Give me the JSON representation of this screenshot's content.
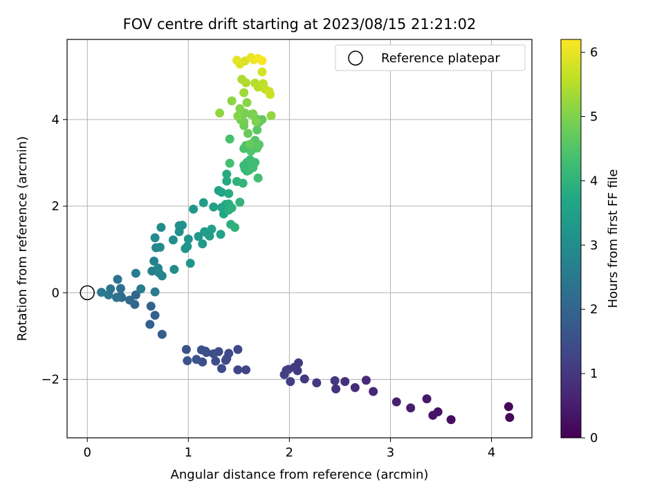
{
  "chart_data": {
    "type": "scatter",
    "title": "FOV centre drift starting at 2023/08/15 21:21:02",
    "xlabel": "Angular distance from reference (arcmin)",
    "ylabel": "Rotation from reference (arcmin)",
    "xlim": [
      -0.2,
      4.4
    ],
    "ylim": [
      -3.35,
      5.85
    ],
    "xticks": [
      0,
      1,
      2,
      3,
      4
    ],
    "yticks": [
      -2,
      0,
      2,
      4
    ],
    "grid": true,
    "legend": {
      "placement": "top-right",
      "entries": [
        "Reference platepar"
      ]
    },
    "reference_point": {
      "x": 0,
      "y": 0
    },
    "colorbar": {
      "label": "Hours from first FF file",
      "colormap": "viridis",
      "range": [
        0,
        6.2
      ],
      "ticks": [
        0,
        1,
        2,
        3,
        4,
        5,
        6
      ]
    },
    "series": [
      {
        "points": [
          [
            4.17,
            -2.63,
            0.1
          ],
          [
            4.18,
            -2.88,
            0.15
          ],
          [
            3.6,
            -2.93,
            0.2
          ],
          [
            3.47,
            -2.75,
            0.3
          ],
          [
            3.42,
            -2.83,
            0.35
          ],
          [
            3.36,
            -2.45,
            0.4
          ],
          [
            3.2,
            -2.66,
            0.5
          ],
          [
            3.06,
            -2.52,
            0.55
          ],
          [
            2.83,
            -2.28,
            0.7
          ],
          [
            2.76,
            -2.02,
            0.75
          ],
          [
            2.65,
            -2.19,
            0.8
          ],
          [
            2.55,
            -2.05,
            0.85
          ],
          [
            2.46,
            -2.22,
            0.9
          ],
          [
            2.45,
            -2.03,
            0.95
          ],
          [
            2.27,
            -2.08,
            1.0
          ],
          [
            2.15,
            -1.99,
            1.02
          ],
          [
            2.09,
            -1.62,
            1.04
          ],
          [
            2.08,
            -1.8,
            1.06
          ],
          [
            2.05,
            -1.72,
            1.08
          ],
          [
            2.01,
            -2.05,
            1.1
          ],
          [
            1.99,
            -1.77,
            1.12
          ],
          [
            1.97,
            -1.79,
            1.14
          ],
          [
            1.95,
            -1.89,
            1.16
          ],
          [
            1.57,
            -1.78,
            1.25
          ],
          [
            1.49,
            -1.78,
            1.28
          ],
          [
            1.49,
            -1.31,
            1.3
          ],
          [
            1.4,
            -1.4,
            1.33
          ],
          [
            1.38,
            -1.52,
            1.36
          ],
          [
            1.37,
            -1.56,
            1.38
          ],
          [
            1.33,
            -1.75,
            1.4
          ],
          [
            1.3,
            -1.36,
            1.42
          ],
          [
            1.27,
            -1.58,
            1.44
          ],
          [
            1.25,
            -1.41,
            1.46
          ],
          [
            1.18,
            -1.38,
            1.48
          ],
          [
            1.14,
            -1.6,
            1.5
          ],
          [
            1.17,
            -1.35,
            1.52
          ],
          [
            1.13,
            -1.32,
            1.54
          ],
          [
            1.08,
            -1.54,
            1.56
          ],
          [
            0.98,
            -1.31,
            1.58
          ],
          [
            0.99,
            -1.57,
            1.6
          ],
          [
            0.74,
            -0.96,
            1.8
          ],
          [
            0.67,
            -0.52,
            1.85
          ],
          [
            0.62,
            -0.73,
            1.9
          ],
          [
            0.63,
            -0.31,
            1.95
          ],
          [
            0.48,
            -0.05,
            2.0
          ],
          [
            0.47,
            -0.27,
            2.05
          ],
          [
            0.42,
            -0.17,
            2.1
          ],
          [
            0.34,
            -0.11,
            2.15
          ],
          [
            0.33,
            -0.08,
            2.2
          ],
          [
            0.33,
            0.1,
            2.25
          ],
          [
            0.29,
            -0.11,
            2.3
          ],
          [
            0.3,
            0.31,
            2.35
          ],
          [
            0.23,
            0.09,
            2.4
          ],
          [
            0.21,
            -0.05,
            2.45
          ],
          [
            0.14,
            0.01,
            2.5
          ],
          [
            0.53,
            0.09,
            2.55
          ],
          [
            0.67,
            0.02,
            2.58
          ],
          [
            0.48,
            0.45,
            2.62
          ],
          [
            0.64,
            0.5,
            2.66
          ],
          [
            0.66,
            0.73,
            2.7
          ],
          [
            0.71,
            0.46,
            2.74
          ],
          [
            0.74,
            0.39,
            2.78
          ],
          [
            0.7,
            0.57,
            2.82
          ],
          [
            0.68,
            1.04,
            2.86
          ],
          [
            0.72,
            1.05,
            2.9
          ],
          [
            0.67,
            1.27,
            2.93
          ],
          [
            0.73,
            1.51,
            2.96
          ],
          [
            0.86,
            0.54,
            3.0
          ],
          [
            0.85,
            1.22,
            3.03
          ],
          [
            0.91,
            1.41,
            3.06
          ],
          [
            0.91,
            1.55,
            3.09
          ],
          [
            0.94,
            1.56,
            3.12
          ],
          [
            0.97,
            1.02,
            3.15
          ],
          [
            0.99,
            1.07,
            3.18
          ],
          [
            1.0,
            1.24,
            3.21
          ],
          [
            1.02,
            0.68,
            3.24
          ],
          [
            1.05,
            1.93,
            3.27
          ],
          [
            1.1,
            1.3,
            3.3
          ],
          [
            1.14,
            1.13,
            3.33
          ],
          [
            1.16,
            1.41,
            3.36
          ],
          [
            1.15,
            2.08,
            3.39
          ],
          [
            1.19,
            1.37,
            3.42
          ],
          [
            1.21,
            1.31,
            3.45
          ],
          [
            1.23,
            1.47,
            3.48
          ],
          [
            1.25,
            1.98,
            3.51
          ],
          [
            1.3,
            2.36,
            3.54
          ],
          [
            1.32,
            1.35,
            3.57
          ],
          [
            1.33,
            1.97,
            3.6
          ],
          [
            1.33,
            2.32,
            3.63
          ],
          [
            1.35,
            1.82,
            3.66
          ],
          [
            1.36,
            1.93,
            3.69
          ],
          [
            1.37,
            2.04,
            3.72
          ],
          [
            1.38,
            2.58,
            3.75
          ],
          [
            1.38,
            2.74,
            3.78
          ],
          [
            1.4,
            2.29,
            3.81
          ],
          [
            1.4,
            2.05,
            3.84
          ],
          [
            1.4,
            1.91,
            3.87
          ],
          [
            1.42,
            1.58,
            3.9
          ],
          [
            1.43,
            1.96,
            3.93
          ],
          [
            1.46,
            1.51,
            3.96
          ],
          [
            1.48,
            2.57,
            3.99
          ],
          [
            1.51,
            2.09,
            4.02
          ],
          [
            1.54,
            2.53,
            4.05
          ],
          [
            1.56,
            2.86,
            4.08
          ],
          [
            1.58,
            2.81,
            4.11
          ],
          [
            1.55,
            2.94,
            4.14
          ],
          [
            1.58,
            3.01,
            4.17
          ],
          [
            1.6,
            2.83,
            4.2
          ],
          [
            1.61,
            3.07,
            4.23
          ],
          [
            1.64,
            2.89,
            4.26
          ],
          [
            1.66,
            3.01,
            4.29
          ],
          [
            1.69,
            2.65,
            4.32
          ],
          [
            1.41,
            2.99,
            4.35
          ],
          [
            1.41,
            3.55,
            4.38
          ],
          [
            1.55,
            3.33,
            4.41
          ],
          [
            1.57,
            3.4,
            4.44
          ],
          [
            1.62,
            3.27,
            4.47
          ],
          [
            1.65,
            3.36,
            4.5
          ],
          [
            1.66,
            3.52,
            4.53
          ],
          [
            1.68,
            3.34,
            4.56
          ],
          [
            1.7,
            3.42,
            4.59
          ],
          [
            1.68,
            3.76,
            4.62
          ],
          [
            1.7,
            3.94,
            4.65
          ],
          [
            1.67,
            4.02,
            4.68
          ],
          [
            1.73,
            4.0,
            4.71
          ],
          [
            1.61,
            3.43,
            4.74
          ],
          [
            1.59,
            3.68,
            4.77
          ],
          [
            1.55,
            3.86,
            4.8
          ],
          [
            1.52,
            3.99,
            4.83
          ],
          [
            1.53,
            4.09,
            4.86
          ],
          [
            1.55,
            3.95,
            4.89
          ],
          [
            1.56,
            4.15,
            4.92
          ],
          [
            1.62,
            4.12,
            4.95
          ],
          [
            1.64,
            4.13,
            4.98
          ],
          [
            1.67,
            3.95,
            5.01
          ],
          [
            1.49,
            4.08,
            5.04
          ],
          [
            1.51,
            4.25,
            5.07
          ],
          [
            1.58,
            4.39,
            5.1
          ],
          [
            1.43,
            4.43,
            5.13
          ],
          [
            1.31,
            4.15,
            5.16
          ],
          [
            1.82,
            4.09,
            5.19
          ],
          [
            1.55,
            4.62,
            5.3
          ],
          [
            1.53,
            4.93,
            5.4
          ],
          [
            1.57,
            4.85,
            5.45
          ],
          [
            1.66,
            4.84,
            5.5
          ],
          [
            1.69,
            4.75,
            5.55
          ],
          [
            1.74,
            4.83,
            5.6
          ],
          [
            1.76,
            4.7,
            5.65
          ],
          [
            1.8,
            4.65,
            5.7
          ],
          [
            1.81,
            4.58,
            5.75
          ],
          [
            1.73,
            5.1,
            5.8
          ],
          [
            1.56,
            5.35,
            5.85
          ],
          [
            1.51,
            5.28,
            5.9
          ],
          [
            1.48,
            5.37,
            5.95
          ],
          [
            1.62,
            5.43,
            6.0
          ],
          [
            1.65,
            5.38,
            6.05
          ],
          [
            1.69,
            5.41,
            6.1
          ],
          [
            1.73,
            5.36,
            6.15
          ]
        ]
      }
    ]
  }
}
